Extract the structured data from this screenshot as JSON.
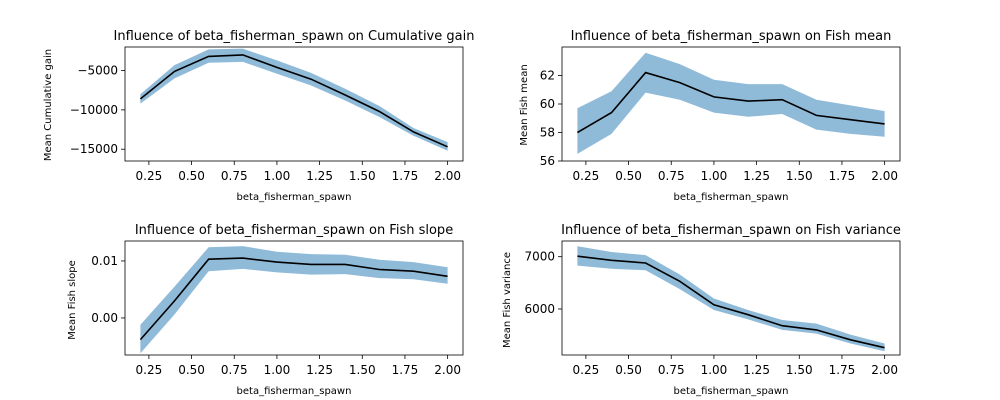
{
  "chart_data": [
    {
      "type": "line",
      "title": "Influence of beta_fisherman_spawn on Cumulative gain",
      "xlabel": "beta_fisherman_spawn",
      "ylabel": "Mean Cumulative gain",
      "x": [
        0.2,
        0.4,
        0.6,
        0.8,
        1.0,
        1.2,
        1.4,
        1.6,
        1.8,
        2.0
      ],
      "y": [
        -8600,
        -5100,
        -3200,
        -3000,
        -4600,
        -6100,
        -8100,
        -10200,
        -12800,
        -14700
      ],
      "band_low": [
        -9200,
        -6000,
        -4000,
        -3900,
        -5400,
        -6900,
        -8800,
        -10900,
        -13300,
        -15200
      ],
      "band_high": [
        -8000,
        -4300,
        -2300,
        -2200,
        -3700,
        -5300,
        -7300,
        -9500,
        -12300,
        -14100
      ],
      "xlim": [
        0.11,
        2.09
      ],
      "ylim": [
        -16500,
        -2000
      ],
      "xticks": [
        0.25,
        0.5,
        0.75,
        1.0,
        1.25,
        1.5,
        1.75,
        2.0
      ],
      "xtick_labels": [
        "0.25",
        "0.50",
        "0.75",
        "1.00",
        "1.25",
        "1.50",
        "1.75",
        "2.00"
      ],
      "yticks": [
        -15000,
        -10000,
        -5000
      ],
      "ytick_labels": [
        "−15000",
        "−10000",
        "−5000"
      ],
      "line_color": "#000000",
      "band_color": "#1f77b4"
    },
    {
      "type": "line",
      "title": "Influence of beta_fisherman_spawn on Fish mean",
      "xlabel": "beta_fisherman_spawn",
      "ylabel": "Mean Fish mean",
      "x": [
        0.2,
        0.4,
        0.6,
        0.8,
        1.0,
        1.2,
        1.4,
        1.6,
        1.8,
        2.0
      ],
      "y": [
        58.0,
        59.4,
        62.2,
        61.5,
        60.5,
        60.2,
        60.3,
        59.2,
        58.9,
        58.6
      ],
      "band_low": [
        56.5,
        57.9,
        60.8,
        60.3,
        59.4,
        59.1,
        59.3,
        58.2,
        57.9,
        57.7
      ],
      "band_high": [
        59.7,
        60.9,
        63.6,
        62.8,
        61.7,
        61.4,
        61.4,
        60.3,
        59.9,
        59.5
      ],
      "xlim": [
        0.11,
        2.09
      ],
      "ylim": [
        56.0,
        64.0
      ],
      "xticks": [
        0.25,
        0.5,
        0.75,
        1.0,
        1.25,
        1.5,
        1.75,
        2.0
      ],
      "xtick_labels": [
        "0.25",
        "0.50",
        "0.75",
        "1.00",
        "1.25",
        "1.50",
        "1.75",
        "2.00"
      ],
      "yticks": [
        56,
        58,
        60,
        62
      ],
      "ytick_labels": [
        "56",
        "58",
        "60",
        "62"
      ],
      "line_color": "#000000",
      "band_color": "#1f77b4"
    },
    {
      "type": "line",
      "title": "Influence of beta_fisherman_spawn on Fish slope",
      "xlabel": "beta_fisherman_spawn",
      "ylabel": "Mean Fish slope",
      "x": [
        0.2,
        0.4,
        0.6,
        0.8,
        1.0,
        1.2,
        1.4,
        1.6,
        1.8,
        2.0
      ],
      "y": [
        -0.0038,
        0.003,
        0.0103,
        0.0105,
        0.0098,
        0.0094,
        0.0094,
        0.0085,
        0.0082,
        0.0073
      ],
      "band_low": [
        -0.0062,
        0.0006,
        0.0082,
        0.0086,
        0.008,
        0.0076,
        0.0077,
        0.007,
        0.0068,
        0.006
      ],
      "band_high": [
        -0.0012,
        0.0055,
        0.0124,
        0.0126,
        0.0116,
        0.0112,
        0.0111,
        0.0102,
        0.0098,
        0.0089
      ],
      "xlim": [
        0.11,
        2.09
      ],
      "ylim": [
        -0.0065,
        0.0135
      ],
      "xticks": [
        0.25,
        0.5,
        0.75,
        1.0,
        1.25,
        1.5,
        1.75,
        2.0
      ],
      "xtick_labels": [
        "0.25",
        "0.50",
        "0.75",
        "1.00",
        "1.25",
        "1.50",
        "1.75",
        "2.00"
      ],
      "yticks": [
        0.0,
        0.01
      ],
      "ytick_labels": [
        "0.00",
        "0.01"
      ],
      "line_color": "#000000",
      "band_color": "#1f77b4"
    },
    {
      "type": "line",
      "title": "Influence of beta_fisherman_spawn on Fish variance",
      "xlabel": "beta_fisherman_spawn",
      "ylabel": "Mean Fish variance",
      "x": [
        0.2,
        0.4,
        0.6,
        0.8,
        1.0,
        1.2,
        1.4,
        1.6,
        1.8,
        2.0
      ],
      "y": [
        7010,
        6930,
        6880,
        6530,
        6080,
        5890,
        5680,
        5600,
        5410,
        5260
      ],
      "band_low": [
        6830,
        6770,
        6740,
        6380,
        5980,
        5800,
        5600,
        5530,
        5340,
        5190
      ],
      "band_high": [
        7200,
        7090,
        7030,
        6660,
        6200,
        5980,
        5790,
        5720,
        5510,
        5340
      ],
      "xlim": [
        0.11,
        2.09
      ],
      "ylim": [
        5120,
        7300
      ],
      "xticks": [
        0.25,
        0.5,
        0.75,
        1.0,
        1.25,
        1.5,
        1.75,
        2.0
      ],
      "xtick_labels": [
        "0.25",
        "0.50",
        "0.75",
        "1.00",
        "1.25",
        "1.50",
        "1.75",
        "2.00"
      ],
      "yticks": [
        6000,
        7000
      ],
      "ytick_labels": [
        "6000",
        "7000"
      ],
      "line_color": "#000000",
      "band_color": "#1f77b4"
    }
  ]
}
